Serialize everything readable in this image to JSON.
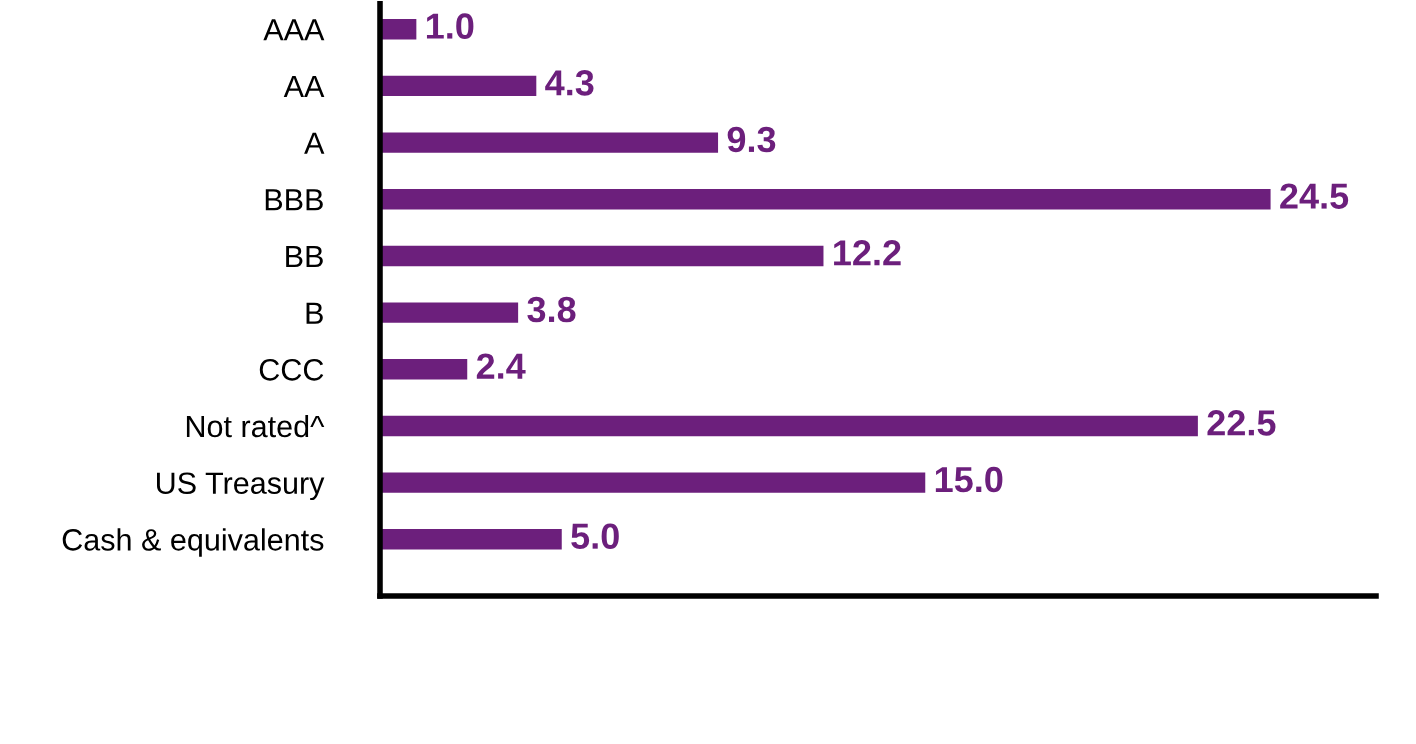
{
  "chart_data": {
    "type": "bar",
    "orientation": "horizontal",
    "categories": [
      "AAA",
      "AA",
      "A",
      "BBB",
      "BB",
      "B",
      "CCC",
      "Not rated^",
      "US Treasury",
      "Cash & equivalents"
    ],
    "values": [
      1.0,
      4.3,
      9.3,
      24.5,
      12.2,
      3.8,
      2.4,
      22.5,
      15.0,
      5.0
    ],
    "value_labels": [
      "1.0",
      "4.3",
      "9.3",
      "24.5",
      "12.2",
      "3.8",
      "2.4",
      "22.5",
      "15.0",
      "5.0"
    ],
    "color": "#6c1f7c",
    "xlim": [
      0,
      27.4
    ],
    "grid": false,
    "legend": false
  }
}
